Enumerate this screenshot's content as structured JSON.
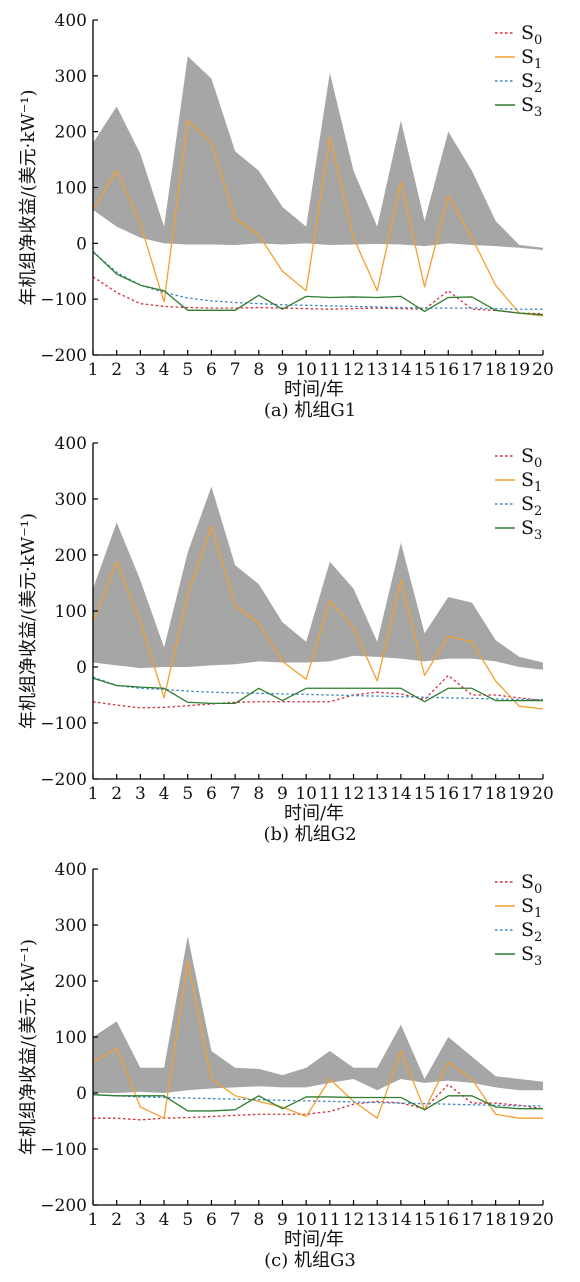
{
  "figure": {
    "colors": {
      "band": "#a6a6a6",
      "S0": "#d62b3a",
      "S1": "#f4a030",
      "S2": "#3b86c4",
      "S3": "#2f7d2f",
      "axis": "#000000"
    }
  },
  "chart_data": [
    {
      "type": "line",
      "caption": "(a) 机组G1",
      "xlabel": "时间/年",
      "ylabel": "年机组净收益/(美元·kW⁻¹)",
      "xlim": [
        1,
        20
      ],
      "ylim": [
        -200,
        400
      ],
      "yticks": [
        -200,
        -100,
        0,
        100,
        200,
        300,
        400
      ],
      "x": [
        1,
        2,
        3,
        4,
        5,
        6,
        7,
        8,
        9,
        10,
        11,
        12,
        13,
        14,
        15,
        16,
        17,
        18,
        19,
        20
      ],
      "band": {
        "upper": [
          180,
          245,
          160,
          30,
          335,
          295,
          165,
          130,
          65,
          30,
          305,
          130,
          30,
          220,
          40,
          200,
          130,
          40,
          -3,
          -8
        ],
        "lower": [
          60,
          30,
          10,
          0,
          -2,
          -2,
          -3,
          0,
          -2,
          0,
          -3,
          -2,
          -1,
          -2,
          -5,
          0,
          -3,
          -5,
          -8,
          -12
        ]
      },
      "series": [
        {
          "name": "S",
          "sub": "0",
          "style": "dotted",
          "color_key": "S0",
          "values": [
            -60,
            -88,
            -108,
            -113,
            -115,
            -116,
            -116,
            -115,
            -116,
            -117,
            -118,
            -117,
            -116,
            -117,
            -118,
            -85,
            -118,
            -120,
            -125,
            -126
          ]
        },
        {
          "name": "S",
          "sub": "1",
          "style": "solid",
          "color_key": "S1",
          "values": [
            60,
            130,
            35,
            -105,
            220,
            180,
            45,
            15,
            -50,
            -85,
            190,
            10,
            -85,
            110,
            -78,
            85,
            10,
            -75,
            -125,
            -130
          ]
        },
        {
          "name": "S",
          "sub": "2",
          "style": "dotted",
          "color_key": "S2",
          "values": [
            -15,
            -52,
            -75,
            -88,
            -98,
            -103,
            -106,
            -108,
            -110,
            -111,
            -112,
            -113,
            -114,
            -115,
            -116,
            -116,
            -116,
            -117,
            -118,
            -118
          ]
        },
        {
          "name": "S",
          "sub": "3",
          "style": "solid",
          "color_key": "S3",
          "values": [
            -15,
            -55,
            -75,
            -85,
            -120,
            -120,
            -120,
            -93,
            -118,
            -95,
            -97,
            -96,
            -97,
            -95,
            -122,
            -97,
            -96,
            -120,
            -125,
            -128
          ]
        }
      ]
    },
    {
      "type": "line",
      "caption": "(b) 机组G2",
      "xlabel": "时间/年",
      "ylabel": "年机组净收益/(美元·kW⁻¹)",
      "xlim": [
        1,
        20
      ],
      "ylim": [
        -200,
        400
      ],
      "yticks": [
        -200,
        -100,
        0,
        100,
        200,
        300,
        400
      ],
      "x": [
        1,
        2,
        3,
        4,
        5,
        6,
        7,
        8,
        9,
        10,
        11,
        12,
        13,
        14,
        15,
        16,
        17,
        18,
        19,
        20
      ],
      "band": {
        "upper": [
          140,
          258,
          155,
          35,
          205,
          322,
          182,
          148,
          80,
          45,
          188,
          140,
          45,
          222,
          60,
          125,
          115,
          48,
          18,
          8
        ],
        "lower": [
          8,
          3,
          -2,
          0,
          0,
          3,
          5,
          10,
          8,
          8,
          10,
          20,
          18,
          15,
          10,
          15,
          15,
          10,
          0,
          -5
        ]
      },
      "series": [
        {
          "name": "S",
          "sub": "0",
          "style": "dotted",
          "color_key": "S0",
          "values": [
            -62,
            -68,
            -73,
            -72,
            -69,
            -66,
            -63,
            -62,
            -62,
            -62,
            -62,
            -50,
            -45,
            -48,
            -58,
            -15,
            -50,
            -50,
            -55,
            -60
          ]
        },
        {
          "name": "S",
          "sub": "1",
          "style": "solid",
          "color_key": "S1",
          "values": [
            80,
            188,
            80,
            -55,
            130,
            252,
            110,
            78,
            10,
            -22,
            118,
            70,
            -25,
            155,
            -15,
            55,
            45,
            -25,
            -70,
            -75
          ]
        },
        {
          "name": "S",
          "sub": "2",
          "style": "dotted",
          "color_key": "S2",
          "values": [
            -18,
            -33,
            -38,
            -40,
            -43,
            -45,
            -46,
            -47,
            -48,
            -49,
            -50,
            -51,
            -52,
            -53,
            -54,
            -55,
            -56,
            -57,
            -58,
            -58
          ]
        },
        {
          "name": "S",
          "sub": "3",
          "style": "solid",
          "color_key": "S3",
          "values": [
            -20,
            -33,
            -36,
            -38,
            -63,
            -65,
            -65,
            -38,
            -60,
            -38,
            -38,
            -38,
            -38,
            -38,
            -62,
            -38,
            -38,
            -60,
            -60,
            -60
          ]
        }
      ]
    },
    {
      "type": "line",
      "caption": "(c) 机组G3",
      "xlabel": "时间/年",
      "ylabel": "年机组净收益/(美元·kW⁻¹)",
      "xlim": [
        1,
        20
      ],
      "ylim": [
        -200,
        400
      ],
      "yticks": [
        -200,
        -100,
        0,
        100,
        200,
        300,
        400
      ],
      "x": [
        1,
        2,
        3,
        4,
        5,
        6,
        7,
        8,
        9,
        10,
        11,
        12,
        13,
        14,
        15,
        16,
        17,
        18,
        19,
        20
      ],
      "band": {
        "upper": [
          100,
          128,
          45,
          45,
          280,
          75,
          45,
          43,
          32,
          45,
          75,
          45,
          45,
          122,
          25,
          100,
          65,
          30,
          25,
          20
        ],
        "lower": [
          0,
          0,
          2,
          0,
          5,
          8,
          10,
          12,
          10,
          10,
          18,
          25,
          5,
          25,
          18,
          22,
          18,
          10,
          5,
          5
        ]
      },
      "series": [
        {
          "name": "S",
          "sub": "0",
          "style": "dotted",
          "color_key": "S0",
          "values": [
            -45,
            -45,
            -48,
            -45,
            -44,
            -42,
            -40,
            -38,
            -38,
            -38,
            -33,
            -20,
            -15,
            -18,
            -28,
            15,
            -18,
            -18,
            -22,
            -28
          ]
        },
        {
          "name": "S",
          "sub": "1",
          "style": "solid",
          "color_key": "S1",
          "values": [
            55,
            80,
            -25,
            -45,
            235,
            25,
            -5,
            -15,
            -25,
            -42,
            25,
            -15,
            -45,
            75,
            -30,
            55,
            25,
            -38,
            -45,
            -45
          ]
        },
        {
          "name": "S",
          "sub": "2",
          "style": "dotted",
          "color_key": "S2",
          "values": [
            -3,
            -5,
            -7,
            -8,
            -9,
            -10,
            -11,
            -12,
            -13,
            -14,
            -15,
            -16,
            -17,
            -18,
            -19,
            -20,
            -21,
            -22,
            -23,
            -23
          ]
        },
        {
          "name": "S",
          "sub": "3",
          "style": "solid",
          "color_key": "S3",
          "values": [
            -3,
            -5,
            -5,
            -5,
            -32,
            -32,
            -30,
            -5,
            -28,
            -7,
            -7,
            -8,
            -8,
            -8,
            -30,
            -5,
            -5,
            -25,
            -28,
            -28
          ]
        }
      ]
    }
  ]
}
